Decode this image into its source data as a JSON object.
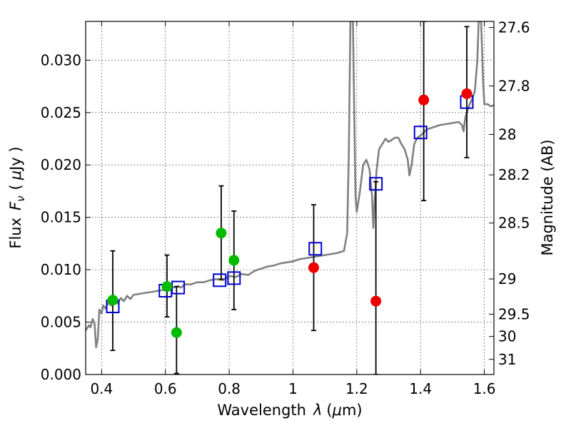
{
  "chart_data": {
    "type": "scatter",
    "xlabel_text": "Wavelength",
    "xlabel_symbol": "λ",
    "xlabel_unit_open": "(",
    "xlabel_unit_mu": "μ",
    "xlabel_unit_rest": "m)",
    "ylabel_text": "Flux",
    "ylabel_symbol": "F",
    "ylabel_symbol_sub": "ν",
    "ylabel_unit_open": "(",
    "ylabel_unit_mu": "μ",
    "ylabel_unit_rest": "Jy )",
    "y2label": "Magnitude (AB)",
    "xlim": [
      0.35,
      1.63
    ],
    "ylim": [
      0.0,
      0.0337
    ],
    "xticks": [
      0.4,
      0.6,
      0.8,
      1.0,
      1.2,
      1.4,
      1.6
    ],
    "xtick_labels": [
      "0.4",
      "0.6",
      "0.8",
      "1",
      "1.2",
      "1.4",
      "1.6"
    ],
    "yticks": [
      0.0,
      0.005,
      0.01,
      0.015,
      0.02,
      0.025,
      0.03
    ],
    "ytick_labels": [
      "0.000",
      "0.005",
      "0.010",
      "0.015",
      "0.020",
      "0.025",
      "0.030"
    ],
    "mag_ticks": [
      27.6,
      27.8,
      28,
      28.2,
      28.5,
      29,
      29.5,
      30,
      31
    ],
    "mag_tick_labels": [
      "27.6",
      "27.8",
      "28",
      "28.2",
      "28.5",
      "29",
      "29.5",
      "30",
      "31"
    ],
    "grid": true,
    "colors": {
      "green_points": "#00bb00",
      "red_points": "#ee0000",
      "model_squares": "#0000cc",
      "template_line": "#808080",
      "error_bars": "#000000"
    },
    "green_points": [
      {
        "x": 0.435,
        "y": 0.0071
      },
      {
        "x": 0.605,
        "y": 0.0084
      },
      {
        "x": 0.635,
        "y": 0.004
      },
      {
        "x": 0.775,
        "y": 0.0135
      },
      {
        "x": 0.815,
        "y": 0.0109
      }
    ],
    "red_points": [
      {
        "x": 1.065,
        "y": 0.0102
      },
      {
        "x": 1.26,
        "y": 0.007
      },
      {
        "x": 1.41,
        "y": 0.0262
      },
      {
        "x": 1.545,
        "y": 0.0268
      }
    ],
    "error_bars": [
      {
        "x": 0.435,
        "ylow": 0.0023,
        "yhigh": 0.0118
      },
      {
        "x": 0.605,
        "ylow": 0.0055,
        "yhigh": 0.0114
      },
      {
        "x": 0.635,
        "ylow": 0.0001,
        "yhigh": 0.0084
      },
      {
        "x": 0.775,
        "ylow": 0.0091,
        "yhigh": 0.018
      },
      {
        "x": 0.815,
        "ylow": 0.0062,
        "yhigh": 0.0156
      },
      {
        "x": 1.065,
        "ylow": 0.0042,
        "yhigh": 0.0162
      },
      {
        "x": 1.26,
        "ylow": 0.0,
        "yhigh": 0.0184
      },
      {
        "x": 1.41,
        "ylow": 0.0166,
        "yhigh": 0.0337
      },
      {
        "x": 1.545,
        "ylow": 0.0207,
        "yhigh": 0.0332
      }
    ],
    "model_squares": [
      {
        "x": 0.435,
        "y": 0.0065
      },
      {
        "x": 0.6,
        "y": 0.008
      },
      {
        "x": 0.64,
        "y": 0.0083
      },
      {
        "x": 0.77,
        "y": 0.009
      },
      {
        "x": 0.815,
        "y": 0.0092
      },
      {
        "x": 1.07,
        "y": 0.012
      },
      {
        "x": 1.26,
        "y": 0.0182
      },
      {
        "x": 1.4,
        "y": 0.0231
      },
      {
        "x": 1.545,
        "y": 0.026
      }
    ],
    "template_line": [
      [
        0.35,
        0.0042
      ],
      [
        0.36,
        0.0047
      ],
      [
        0.365,
        0.0045
      ],
      [
        0.372,
        0.0053
      ],
      [
        0.378,
        0.0048
      ],
      [
        0.383,
        0.0026
      ],
      [
        0.388,
        0.0034
      ],
      [
        0.393,
        0.0062
      ],
      [
        0.4,
        0.0058
      ],
      [
        0.405,
        0.0066
      ],
      [
        0.412,
        0.0063
      ],
      [
        0.42,
        0.0068
      ],
      [
        0.43,
        0.0066
      ],
      [
        0.44,
        0.007
      ],
      [
        0.45,
        0.0068
      ],
      [
        0.46,
        0.0073
      ],
      [
        0.47,
        0.007
      ],
      [
        0.48,
        0.0075
      ],
      [
        0.49,
        0.0072
      ],
      [
        0.5,
        0.0076
      ],
      [
        0.52,
        0.0077
      ],
      [
        0.54,
        0.0078
      ],
      [
        0.56,
        0.0079
      ],
      [
        0.58,
        0.008
      ],
      [
        0.6,
        0.0081
      ],
      [
        0.62,
        0.0083
      ],
      [
        0.64,
        0.0084
      ],
      [
        0.65,
        0.0083
      ],
      [
        0.66,
        0.0086
      ],
      [
        0.68,
        0.0086
      ],
      [
        0.7,
        0.0088
      ],
      [
        0.72,
        0.0088
      ],
      [
        0.74,
        0.009
      ],
      [
        0.76,
        0.0091
      ],
      [
        0.78,
        0.009
      ],
      [
        0.8,
        0.0094
      ],
      [
        0.82,
        0.0093
      ],
      [
        0.84,
        0.0096
      ],
      [
        0.86,
        0.0095
      ],
      [
        0.88,
        0.0099
      ],
      [
        0.9,
        0.0101
      ],
      [
        0.92,
        0.0103
      ],
      [
        0.94,
        0.0104
      ],
      [
        0.96,
        0.0106
      ],
      [
        0.98,
        0.0107
      ],
      [
        1.0,
        0.0108
      ],
      [
        1.02,
        0.011
      ],
      [
        1.04,
        0.0111
      ],
      [
        1.06,
        0.0112
      ],
      [
        1.08,
        0.0113
      ],
      [
        1.1,
        0.0114
      ],
      [
        1.12,
        0.0115
      ],
      [
        1.14,
        0.0116
      ],
      [
        1.16,
        0.0118
      ],
      [
        1.17,
        0.0135
      ],
      [
        1.175,
        0.021
      ],
      [
        1.18,
        0.0337
      ],
      [
        1.188,
        0.0337
      ],
      [
        1.192,
        0.025
      ],
      [
        1.196,
        0.017
      ],
      [
        1.2,
        0.0155
      ],
      [
        1.21,
        0.0175
      ],
      [
        1.22,
        0.02
      ],
      [
        1.23,
        0.0205
      ],
      [
        1.24,
        0.0196
      ],
      [
        1.248,
        0.017
      ],
      [
        1.252,
        0.014
      ],
      [
        1.256,
        0.0165
      ],
      [
        1.262,
        0.0195
      ],
      [
        1.27,
        0.0215
      ],
      [
        1.28,
        0.022
      ],
      [
        1.29,
        0.0225
      ],
      [
        1.3,
        0.0222
      ],
      [
        1.31,
        0.0224
      ],
      [
        1.32,
        0.0226
      ],
      [
        1.33,
        0.0226
      ],
      [
        1.34,
        0.022
      ],
      [
        1.35,
        0.0215
      ],
      [
        1.36,
        0.0205
      ],
      [
        1.365,
        0.019
      ],
      [
        1.372,
        0.02
      ],
      [
        1.38,
        0.022
      ],
      [
        1.39,
        0.0226
      ],
      [
        1.4,
        0.0228
      ],
      [
        1.41,
        0.0231
      ],
      [
        1.42,
        0.0234
      ],
      [
        1.44,
        0.0236
      ],
      [
        1.46,
        0.0238
      ],
      [
        1.48,
        0.0239
      ],
      [
        1.5,
        0.024
      ],
      [
        1.52,
        0.0241
      ],
      [
        1.53,
        0.0238
      ],
      [
        1.535,
        0.0232
      ],
      [
        1.54,
        0.0245
      ],
      [
        1.55,
        0.0255
      ],
      [
        1.56,
        0.0262
      ],
      [
        1.57,
        0.027
      ],
      [
        1.578,
        0.03
      ],
      [
        1.582,
        0.0337
      ],
      [
        1.59,
        0.0337
      ],
      [
        1.596,
        0.028
      ],
      [
        1.6,
        0.0258
      ],
      [
        1.61,
        0.0258
      ],
      [
        1.62,
        0.0256
      ],
      [
        1.63,
        0.0257
      ]
    ]
  }
}
